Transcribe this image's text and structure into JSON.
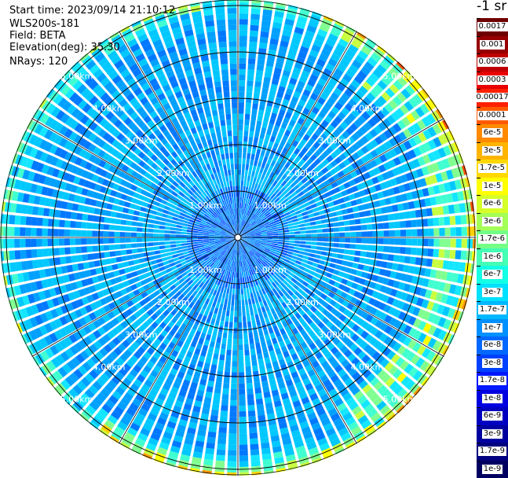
{
  "header": {
    "start_time": "Start time: 2023/09/14 21:10:12",
    "instrument": "WLS200s-181",
    "field": "Field: BETA",
    "elevation": "Elevation(deg): 35.30",
    "nrays": "NRays: 120"
  },
  "colorbar": {
    "unit_label": "-1 sr",
    "labels": [
      "0.0017",
      "0.001",
      "0.0006",
      "0.0003",
      "0.00017",
      "0.0001",
      "6e-5",
      "3e-5",
      "1.7e-5",
      "1e-5",
      "6e-6",
      "3e-6",
      "1.7e-6",
      "1e-6",
      "6e-7",
      "3e-7",
      "1.7e-7",
      "1e-7",
      "6e-8",
      "3e-8",
      "1.7e-8",
      "1e-8",
      "6e-9",
      "3e-9",
      "1.7e-9",
      "1e-9"
    ],
    "colors": [
      "#6e0000",
      "#960000",
      "#c00000",
      "#e80000",
      "#ff2000",
      "#ff5a00",
      "#ff8a00",
      "#ffb400",
      "#ffd800",
      "#ffff00",
      "#d6ff28",
      "#a4ff56",
      "#74ff86",
      "#44ffb4",
      "#14ffe6",
      "#00e0ff",
      "#00b8ff",
      "#0090ff",
      "#0068ff",
      "#0040ff",
      "#0018ff",
      "#0000e0",
      "#0000c0",
      "#0000a0",
      "#000080",
      "#000060"
    ]
  },
  "chart_data": {
    "type": "heatmap",
    "subtype": "polar-ppi",
    "field": "BETA",
    "nrays": 120,
    "range_rings_km": [
      1.0,
      2.0,
      3.0,
      4.0,
      5.0
    ],
    "ring_labels": [
      "1.00km",
      "2.00km",
      "3.00km",
      "4.00km",
      "5.00km"
    ],
    "max_range_km": 5.1,
    "azimuth_spokes_deg": [
      0,
      30,
      60,
      90,
      120,
      150,
      180,
      210,
      240,
      270,
      300,
      330
    ],
    "backscatter_profile": {
      "range_km": [
        0.1,
        0.5,
        1.0,
        1.5,
        2.0,
        2.5,
        3.0,
        3.5,
        4.0,
        4.5,
        5.0
      ],
      "beta_sr_inv": [
        "3e-7",
        "1.7e-7",
        "1.7e-7",
        "1.7e-7",
        "1.7e-7",
        "1.7e-7",
        "1e-7",
        "1e-7",
        "1.7e-7",
        "6e-7",
        "1.7e-5"
      ]
    },
    "enhanced_sector_deg": [
      20,
      170
    ],
    "colorscale": "log"
  }
}
